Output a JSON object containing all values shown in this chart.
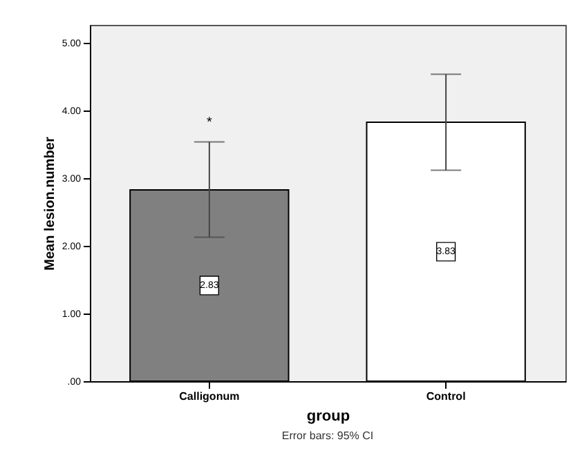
{
  "chart_data": {
    "type": "bar",
    "xlabel": "group",
    "ylabel": "Mean lesion.number",
    "categories": [
      "Calligonum",
      "Control"
    ],
    "values": [
      2.83,
      3.83
    ],
    "colors": [
      "#808080",
      "#ffffff"
    ],
    "errors": [
      [
        2.13,
        3.54
      ],
      [
        3.12,
        4.54
      ]
    ],
    "data_labels": true,
    "ylim": [
      0,
      5.27
    ],
    "yticks": [
      {
        "value": 0,
        "label": ".00"
      },
      {
        "value": 1,
        "label": "1.00"
      },
      {
        "value": 2,
        "label": "2.00"
      },
      {
        "value": 3,
        "label": "3.00"
      },
      {
        "value": 4,
        "label": "4.00"
      },
      {
        "value": 5,
        "label": "5.00"
      }
    ],
    "annotations": [
      "*",
      "Error bars: 95% CI"
    ],
    "grid": false
  }
}
